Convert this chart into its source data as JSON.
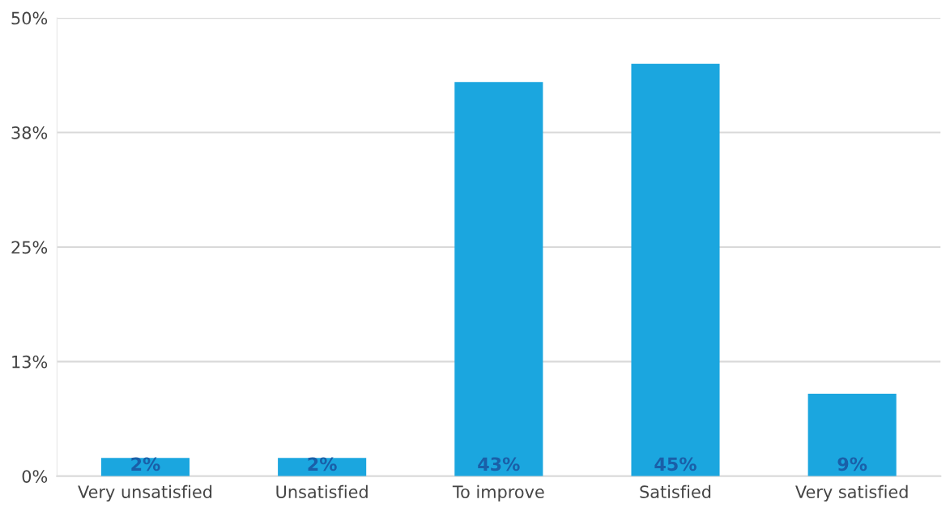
{
  "chart_data": {
    "type": "bar",
    "categories": [
      "Very unsatisfied",
      "Unsatisfied",
      "To improve",
      "Satisfied",
      "Very satisfied"
    ],
    "values": [
      2,
      2,
      43,
      45,
      9
    ],
    "value_labels": [
      "2%",
      "2%",
      "43%",
      "45%",
      "9%"
    ],
    "color": "#1ba6df",
    "ylim": [
      0,
      50
    ],
    "yticks": [
      {
        "value": 0,
        "label": "0%"
      },
      {
        "value": 12.5,
        "label": "13%"
      },
      {
        "value": 25,
        "label": "25%"
      },
      {
        "value": 37.5,
        "label": "38%"
      },
      {
        "value": 50,
        "label": "50%"
      }
    ],
    "grid": "y",
    "legend": false
  }
}
